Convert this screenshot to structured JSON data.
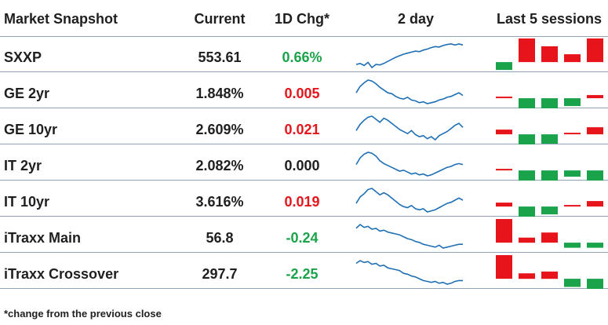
{
  "header": {
    "title": "Market Snapshot",
    "current": "Current",
    "change": "1D Chg*",
    "two_day": "2 day",
    "last5": "Last 5 sessions"
  },
  "rows": [
    {
      "name": "SXXP",
      "current": "553.61",
      "change": "0.66%",
      "direction": "pos",
      "spark": [
        20,
        22,
        18,
        24,
        14,
        20,
        19,
        22,
        26,
        30,
        34,
        37,
        40,
        42,
        44,
        46,
        45,
        48,
        50,
        53,
        55,
        54,
        57,
        59,
        60,
        58,
        60,
        58
      ],
      "bars": [
        -1,
        3,
        2,
        1,
        3
      ]
    },
    {
      "name": "GE 2yr",
      "current": "1.848%",
      "change": "0.005",
      "direction": "neg",
      "spark": [
        30,
        44,
        52,
        58,
        56,
        50,
        42,
        36,
        30,
        28,
        22,
        18,
        16,
        20,
        14,
        12,
        8,
        10,
        6,
        8,
        10,
        14,
        16,
        20,
        22,
        26,
        30,
        24
      ],
      "bars": [
        0.2,
        -3,
        -2,
        -1,
        0.4
      ]
    },
    {
      "name": "GE 10yr",
      "current": "2.609%",
      "change": "0.021",
      "direction": "neg",
      "spark": [
        24,
        36,
        44,
        50,
        52,
        46,
        40,
        48,
        44,
        38,
        32,
        26,
        22,
        18,
        24,
        16,
        12,
        14,
        8,
        12,
        6,
        14,
        18,
        22,
        28,
        34,
        38,
        30
      ],
      "bars": [
        0.6,
        -3,
        -1.2,
        0.1,
        0.9
      ]
    },
    {
      "name": "IT 2yr",
      "current": "2.082%",
      "change": "0.000",
      "direction": "zero",
      "spark": [
        30,
        44,
        52,
        56,
        54,
        48,
        38,
        32,
        28,
        24,
        20,
        16,
        18,
        14,
        10,
        12,
        8,
        10,
        6,
        8,
        12,
        16,
        20,
        24,
        26,
        30,
        32,
        30
      ],
      "bars": [
        0.1,
        -3,
        -2.4,
        -0.8,
        -2
      ]
    },
    {
      "name": "IT 10yr",
      "current": "3.616%",
      "change": "0.019",
      "direction": "neg",
      "spark": [
        24,
        36,
        42,
        50,
        52,
        46,
        40,
        44,
        40,
        34,
        28,
        22,
        18,
        16,
        20,
        14,
        12,
        14,
        8,
        10,
        12,
        16,
        20,
        24,
        26,
        30,
        34,
        30
      ],
      "bars": [
        0.5,
        -3,
        -1,
        0.2,
        0.7
      ]
    },
    {
      "name": "iTraxx Main",
      "current": "56.8",
      "change": "-0.24",
      "direction": "pos",
      "spark": [
        48,
        56,
        50,
        52,
        46,
        48,
        42,
        44,
        40,
        38,
        36,
        34,
        30,
        26,
        24,
        20,
        18,
        14,
        12,
        10,
        8,
        12,
        6,
        8,
        10,
        12,
        14,
        14
      ],
      "bars": [
        2.8,
        0.6,
        1.2,
        -0.6,
        -0.6
      ]
    },
    {
      "name": "iTraxx Crossover",
      "current": "297.7",
      "change": "-2.25",
      "direction": "pos",
      "spark": [
        50,
        56,
        52,
        54,
        48,
        50,
        44,
        46,
        40,
        38,
        36,
        34,
        28,
        26,
        22,
        20,
        16,
        12,
        10,
        8,
        10,
        6,
        8,
        4,
        6,
        10,
        12,
        12
      ],
      "bars": [
        2.6,
        0.6,
        0.8,
        -0.9,
        -1.5
      ]
    }
  ],
  "footnote": "*change from the previous close",
  "colors": {
    "positive": "#1aa34a",
    "negative": "#e8141b",
    "line": "#1f6fb4",
    "rule": "#8fa2b8"
  }
}
